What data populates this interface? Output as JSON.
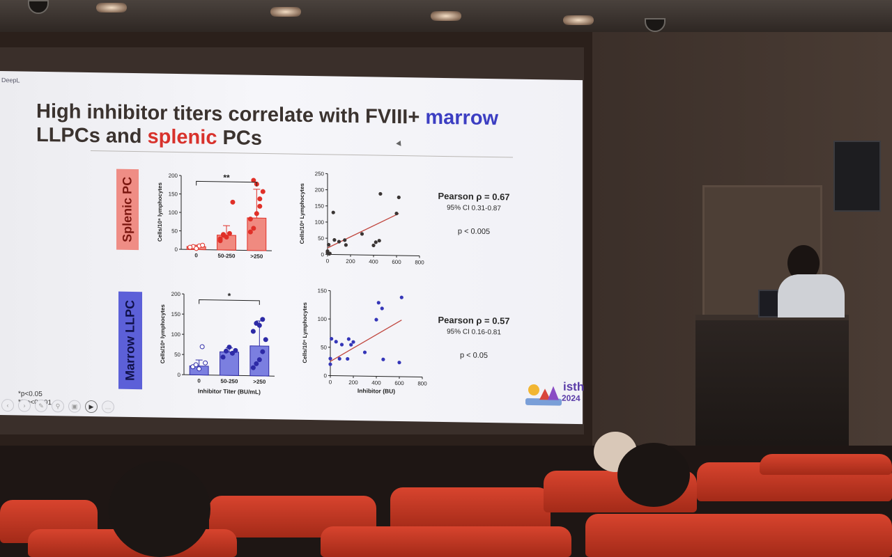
{
  "slide": {
    "app_label": "DeepL",
    "title_part1": "High inhibitor titers correlate with FVIII+",
    "title_marrow": "marrow",
    "title_part2": "LLPCs and",
    "title_splenic": "splenic",
    "title_part3": "PCs",
    "side_label_splenic": "Splenic PC",
    "side_label_marrow": "Marrow LLPC",
    "footnote_1": "*p<0.05",
    "footnote_2": "***p<0.001",
    "logo_text": "isth",
    "logo_year": "2024",
    "toolbar_icons": [
      "back-icon",
      "forward-icon",
      "pen-icon",
      "zoom-icon",
      "subtitle-icon",
      "camera-icon",
      "more-icon"
    ],
    "stats_splenic": {
      "pearson": "Pearson ρ = 0.67",
      "ci": "95% CI 0.31-0.87",
      "p": "p < 0.005"
    },
    "stats_marrow": {
      "pearson": "Pearson ρ = 0.57",
      "ci": "95% CI 0.16-0.81",
      "p": "p < 0.05"
    }
  },
  "colors": {
    "splenic_bar_fill": "#f08a80",
    "splenic_point": "#e03028",
    "marrow_bar_fill": "#7b7fe0",
    "marrow_point": "#2d2aa6",
    "scatter_point_dark": "#3a3534",
    "scatter_point_blue": "#3536b8",
    "fit_line": "#c0463e"
  },
  "chart_data": [
    {
      "type": "bar",
      "name": "splenic-bar",
      "categories": [
        "0",
        "50-250",
        ">250"
      ],
      "values": [
        8,
        40,
        88
      ],
      "errors": [
        4,
        26,
        78
      ],
      "points": [
        [
          5,
          8,
          3,
          10,
          12,
          6
        ],
        [
          25,
          40,
          35,
          45,
          130,
          30,
          42
        ],
        [
          50,
          190,
          180,
          120,
          160,
          85,
          60,
          100,
          140
        ]
      ],
      "ylabel": "Cells/10⁶ lymphocytes",
      "yticks": [
        0,
        50,
        100,
        150,
        200
      ],
      "ylim": [
        0,
        200
      ],
      "significance": "**"
    },
    {
      "type": "scatter",
      "name": "splenic-scatter",
      "x": [
        0,
        0,
        10,
        15,
        20,
        50,
        60,
        100,
        150,
        160,
        300,
        400,
        420,
        450,
        460,
        600,
        620
      ],
      "y": [
        5,
        10,
        30,
        2,
        3,
        130,
        45,
        40,
        45,
        30,
        65,
        30,
        40,
        45,
        190,
        130,
        180
      ],
      "fit": [
        [
          0,
          20
        ],
        [
          620,
          130
        ]
      ],
      "xticks": [
        0,
        200,
        400,
        600,
        800
      ],
      "yticks": [
        0,
        50,
        100,
        150,
        200,
        250
      ],
      "xlim": [
        0,
        800
      ],
      "ylim": [
        0,
        250
      ],
      "ylabel": "Cells/10⁶ Lymphocytes"
    },
    {
      "type": "bar",
      "name": "marrow-bar",
      "categories": [
        "0",
        "50-250",
        ">250"
      ],
      "values": [
        22,
        58,
        74
      ],
      "errors": [
        15,
        10,
        62
      ],
      "points": [
        [
          20,
          25,
          15,
          70,
          30
        ],
        [
          45,
          60,
          70,
          55,
          62
        ],
        [
          20,
          30,
          40,
          60,
          90,
          110,
          130,
          125,
          140
        ]
      ],
      "ylabel": "Cells/10⁶ lymphocytes",
      "xlabel": "Inhibitor Titer (BU/mL)",
      "yticks": [
        0,
        50,
        100,
        150,
        200
      ],
      "ylim": [
        0,
        200
      ],
      "significance": "*"
    },
    {
      "type": "scatter",
      "name": "marrow-scatter",
      "x": [
        0,
        0,
        10,
        50,
        80,
        100,
        150,
        160,
        180,
        200,
        300,
        400,
        420,
        450,
        460,
        600,
        620
      ],
      "y": [
        20,
        30,
        65,
        60,
        30,
        55,
        30,
        65,
        55,
        60,
        42,
        100,
        130,
        120,
        30,
        25,
        140
      ],
      "fit": [
        [
          0,
          25
        ],
        [
          620,
          100
        ]
      ],
      "xticks": [
        0,
        200,
        400,
        600,
        800
      ],
      "yticks": [
        0,
        50,
        100,
        150
      ],
      "xlim": [
        0,
        800
      ],
      "ylim": [
        0,
        150
      ],
      "xlabel": "Inhibitor (BU)",
      "ylabel": "Cells/10⁶ Lymphocytes"
    }
  ]
}
